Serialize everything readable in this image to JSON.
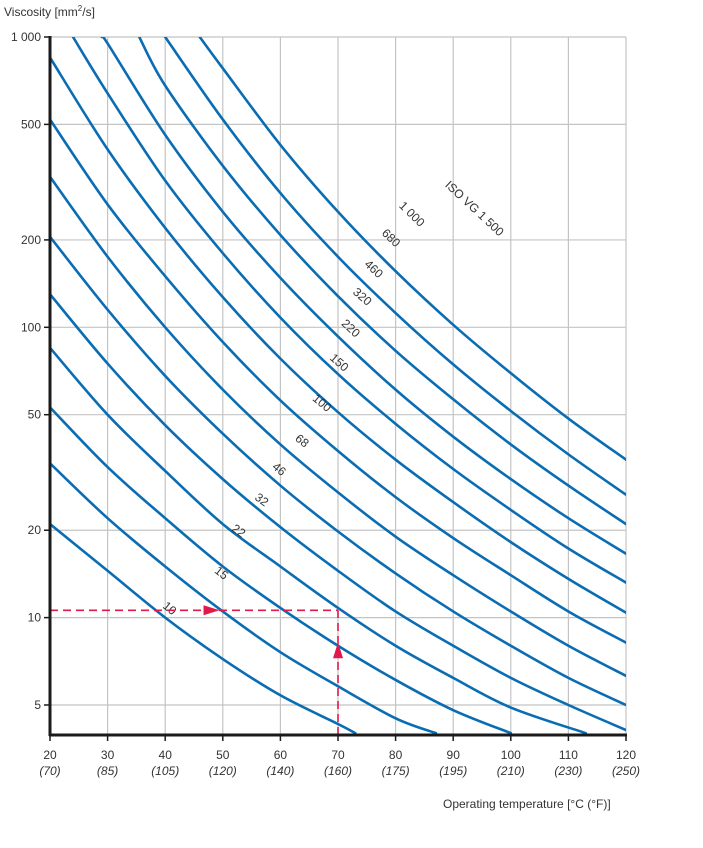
{
  "chart_data": {
    "type": "line",
    "title": "",
    "ylabel": "Viscosity [mm²/s]",
    "xlabel": "Operating temperature [°C (°F)]",
    "yscale": "log",
    "ylim": [
      4,
      1000
    ],
    "xlim": [
      20,
      120
    ],
    "grid": true,
    "legend_position": "inline-labels",
    "y_ticks": [
      {
        "value": 1000,
        "label": "1 000"
      },
      {
        "value": 500,
        "label": "500"
      },
      {
        "value": 200,
        "label": "200"
      },
      {
        "value": 100,
        "label": "100"
      },
      {
        "value": 50,
        "label": "50"
      },
      {
        "value": 20,
        "label": "20"
      },
      {
        "value": 10,
        "label": "10"
      },
      {
        "value": 5,
        "label": "5"
      }
    ],
    "x_ticks": [
      {
        "value": 20,
        "label": "20",
        "sublabel": "(70)"
      },
      {
        "value": 30,
        "label": "30",
        "sublabel": "(85)"
      },
      {
        "value": 40,
        "label": "40",
        "sublabel": "(105)"
      },
      {
        "value": 50,
        "label": "50",
        "sublabel": "(120)"
      },
      {
        "value": 60,
        "label": "60",
        "sublabel": "(140)"
      },
      {
        "value": 70,
        "label": "70",
        "sublabel": "(160)"
      },
      {
        "value": 80,
        "label": "80",
        "sublabel": "(175)"
      },
      {
        "value": 90,
        "label": "90",
        "sublabel": "(195)"
      },
      {
        "value": 100,
        "label": "100",
        "sublabel": "(210)"
      },
      {
        "value": 110,
        "label": "110",
        "sublabel": "(230)"
      },
      {
        "value": 120,
        "label": "120",
        "sublabel": "(250)"
      }
    ],
    "series": [
      {
        "name": "10",
        "label": "10",
        "points": [
          [
            20,
            21
          ],
          [
            30,
            14.5
          ],
          [
            40,
            10
          ],
          [
            50,
            7.2
          ],
          [
            60,
            5.4
          ],
          [
            70,
            4.3
          ],
          [
            73,
            4
          ]
        ],
        "label_at": [
          39,
          10.6
        ]
      },
      {
        "name": "15",
        "label": "15",
        "points": [
          [
            20,
            34
          ],
          [
            30,
            22
          ],
          [
            40,
            15
          ],
          [
            50,
            10.5
          ],
          [
            60,
            7.6
          ],
          [
            70,
            5.8
          ],
          [
            80,
            4.5
          ],
          [
            87,
            4
          ]
        ],
        "label_at": [
          48,
          14
        ]
      },
      {
        "name": "22",
        "label": "22",
        "points": [
          [
            20,
            53
          ],
          [
            30,
            33
          ],
          [
            40,
            22
          ],
          [
            50,
            15
          ],
          [
            60,
            10.8
          ],
          [
            70,
            8
          ],
          [
            80,
            6.1
          ],
          [
            90,
            4.8
          ],
          [
            100,
            4
          ]
        ],
        "label_at": [
          51,
          19.5
        ]
      },
      {
        "name": "32",
        "label": "32",
        "points": [
          [
            20,
            85
          ],
          [
            30,
            50
          ],
          [
            40,
            32
          ],
          [
            50,
            21
          ],
          [
            60,
            15
          ],
          [
            70,
            10.8
          ],
          [
            80,
            8
          ],
          [
            90,
            6.2
          ],
          [
            100,
            4.9
          ],
          [
            113,
            4
          ]
        ],
        "label_at": [
          55,
          25
        ]
      },
      {
        "name": "46",
        "label": "46",
        "points": [
          [
            20,
            130
          ],
          [
            30,
            75
          ],
          [
            40,
            46
          ],
          [
            50,
            30
          ],
          [
            60,
            20.5
          ],
          [
            70,
            14.5
          ],
          [
            80,
            10.5
          ],
          [
            90,
            8
          ],
          [
            100,
            6.2
          ],
          [
            110,
            5
          ],
          [
            120,
            4.1
          ]
        ],
        "label_at": [
          58,
          32
        ]
      },
      {
        "name": "68",
        "label": "68",
        "points": [
          [
            20,
            205
          ],
          [
            30,
            115
          ],
          [
            40,
            68
          ],
          [
            50,
            43
          ],
          [
            60,
            28.5
          ],
          [
            70,
            19.8
          ],
          [
            80,
            14.2
          ],
          [
            90,
            10.5
          ],
          [
            100,
            8
          ],
          [
            110,
            6.2
          ],
          [
            120,
            5
          ]
        ],
        "label_at": [
          62,
          40
        ]
      },
      {
        "name": "100",
        "label": "100",
        "points": [
          [
            20,
            330
          ],
          [
            30,
            175
          ],
          [
            40,
            100
          ],
          [
            50,
            61
          ],
          [
            60,
            39.5
          ],
          [
            70,
            27
          ],
          [
            80,
            19
          ],
          [
            90,
            14
          ],
          [
            100,
            10.5
          ],
          [
            110,
            8
          ],
          [
            120,
            6.3
          ]
        ],
        "label_at": [
          65,
          55
        ]
      },
      {
        "name": "150",
        "label": "150",
        "points": [
          [
            20,
            520
          ],
          [
            30,
            265
          ],
          [
            40,
            150
          ],
          [
            50,
            89
          ],
          [
            60,
            56
          ],
          [
            70,
            37.5
          ],
          [
            80,
            26
          ],
          [
            90,
            18.8
          ],
          [
            100,
            14
          ],
          [
            110,
            10.5
          ],
          [
            120,
            8.2
          ]
        ],
        "label_at": [
          68,
          76
        ]
      },
      {
        "name": "220",
        "label": "220",
        "points": [
          [
            20,
            850
          ],
          [
            30,
            410
          ],
          [
            40,
            220
          ],
          [
            50,
            127
          ],
          [
            60,
            78
          ],
          [
            70,
            51
          ],
          [
            80,
            35
          ],
          [
            90,
            25
          ],
          [
            100,
            18.2
          ],
          [
            110,
            13.6
          ],
          [
            120,
            10.4
          ]
        ],
        "label_at": [
          70,
          100
        ]
      },
      {
        "name": "320",
        "label": "320",
        "points": [
          [
            24,
            1000
          ],
          [
            30,
            640
          ],
          [
            40,
            320
          ],
          [
            50,
            180
          ],
          [
            60,
            108
          ],
          [
            70,
            69
          ],
          [
            80,
            46.5
          ],
          [
            90,
            32.5
          ],
          [
            100,
            23.5
          ],
          [
            110,
            17.3
          ],
          [
            120,
            13.2
          ]
        ],
        "label_at": [
          72,
          128
        ]
      },
      {
        "name": "460",
        "label": "460",
        "points": [
          [
            29,
            1000
          ],
          [
            30,
            950
          ],
          [
            40,
            460
          ],
          [
            50,
            250
          ],
          [
            60,
            148
          ],
          [
            70,
            93
          ],
          [
            80,
            61
          ],
          [
            90,
            42
          ],
          [
            100,
            30
          ],
          [
            110,
            22
          ],
          [
            120,
            16.6
          ]
        ],
        "label_at": [
          74,
          160
        ]
      },
      {
        "name": "680",
        "label": "680",
        "points": [
          [
            35.5,
            1000
          ],
          [
            40,
            680
          ],
          [
            50,
            360
          ],
          [
            60,
            208
          ],
          [
            70,
            128
          ],
          [
            80,
            83
          ],
          [
            90,
            56.5
          ],
          [
            100,
            39.5
          ],
          [
            110,
            28.5
          ],
          [
            120,
            21
          ]
        ],
        "label_at": [
          77,
          205
        ]
      },
      {
        "name": "1 000",
        "label": "1 000",
        "points": [
          [
            40,
            1000
          ],
          [
            50,
            520
          ],
          [
            60,
            290
          ],
          [
            70,
            175
          ],
          [
            80,
            112
          ],
          [
            90,
            74.5
          ],
          [
            100,
            51.5
          ],
          [
            110,
            36.5
          ],
          [
            120,
            26.5
          ]
        ],
        "label_at": [
          80,
          255
        ]
      },
      {
        "name": "1 500",
        "label": "ISO VG 1 500",
        "points": [
          [
            46,
            1000
          ],
          [
            50,
            780
          ],
          [
            60,
            425
          ],
          [
            70,
            250
          ],
          [
            80,
            156
          ],
          [
            90,
            102
          ],
          [
            100,
            69.5
          ],
          [
            110,
            48.5
          ],
          [
            120,
            35
          ]
        ],
        "label_at": [
          88,
          300
        ]
      }
    ],
    "annotations": [
      {
        "type": "dashed-arrow",
        "color": "#e0194d",
        "from": [
          20,
          10.6
        ],
        "to": [
          70,
          10.6
        ],
        "arrow_at": [
          47,
          10.6
        ],
        "direction": "right"
      },
      {
        "type": "dashed-arrow",
        "color": "#e0194d",
        "from": [
          70,
          4
        ],
        "to": [
          70,
          10.6
        ],
        "arrow_at": [
          70,
          7.6
        ],
        "direction": "up"
      }
    ],
    "colors": {
      "curve": "#0a6db3",
      "grid": "#c4c4c4",
      "axis": "#1a1a1a",
      "annotation": "#e0194d"
    }
  }
}
